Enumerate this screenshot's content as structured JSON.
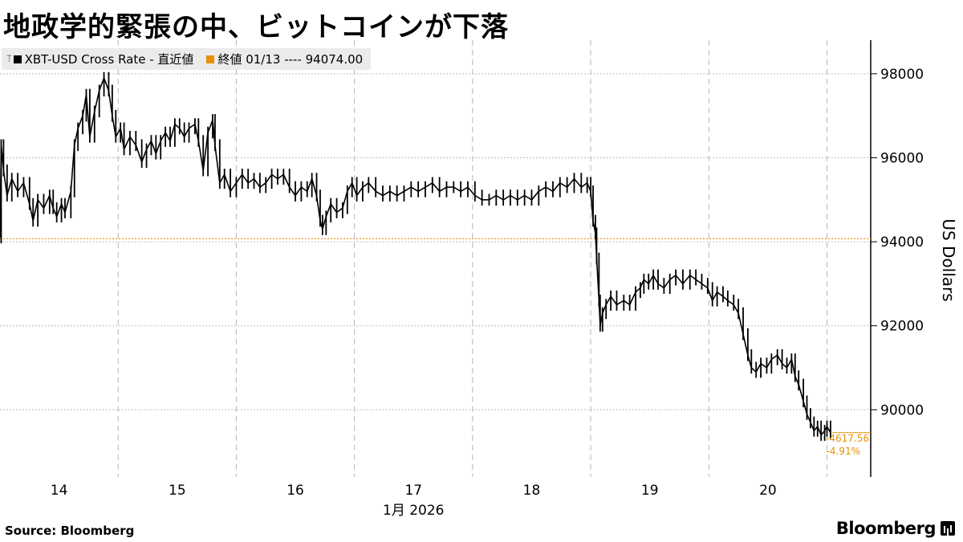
{
  "title": "地政学的緊張の中、ビットコインが下落",
  "legend": {
    "series_label": "XBT-USD Cross Rate - 直近値",
    "series_color": "#000000",
    "ref_label": "終値 01/13 ---- 94074.00",
    "ref_color": "#e69000"
  },
  "footer": {
    "source": "Source:  Bloomberg",
    "brand": "Bloomberg"
  },
  "chart_data": {
    "type": "line",
    "title": "地政学的緊張の中、ビットコインが下落",
    "ylabel": "US Dollars",
    "xlabel": "1月 2026",
    "x_tick_labels": [
      "14",
      "15",
      "16",
      "17",
      "18",
      "19",
      "20"
    ],
    "y_ticks": [
      90000,
      92000,
      94000,
      96000,
      98000
    ],
    "ylim": [
      88400,
      98800
    ],
    "xlim": [
      13.5,
      20.87
    ],
    "grid": true,
    "y_axis_position": "right",
    "reference_line": {
      "label": "終値 01/13",
      "value": 94074.0,
      "color": "#e69000"
    },
    "annotations": {
      "change": "-4617.56",
      "change_pct": "-4.91%"
    },
    "series": [
      {
        "name": "XBT-USD Cross Rate",
        "color": "#000000",
        "points": [
          [
            13.5,
            94100
          ],
          [
            13.51,
            96300
          ],
          [
            13.53,
            95700
          ],
          [
            13.56,
            95100
          ],
          [
            13.6,
            95500
          ],
          [
            13.65,
            95200
          ],
          [
            13.7,
            95400
          ],
          [
            13.75,
            94900
          ],
          [
            13.78,
            94500
          ],
          [
            13.82,
            95000
          ],
          [
            13.87,
            94800
          ],
          [
            13.92,
            95100
          ],
          [
            13.95,
            94800
          ],
          [
            13.98,
            94600
          ],
          [
            14.02,
            94900
          ],
          [
            14.05,
            94700
          ],
          [
            14.1,
            95200
          ],
          [
            14.13,
            96300
          ],
          [
            14.16,
            96700
          ],
          [
            14.2,
            97000
          ],
          [
            14.23,
            97500
          ],
          [
            14.26,
            96500
          ],
          [
            14.3,
            97100
          ],
          [
            14.34,
            97600
          ],
          [
            14.38,
            97900
          ],
          [
            14.42,
            97600
          ],
          [
            14.45,
            97000
          ],
          [
            14.48,
            96500
          ],
          [
            14.52,
            96700
          ],
          [
            14.55,
            96200
          ],
          [
            14.6,
            96500
          ],
          [
            14.65,
            96300
          ],
          [
            14.7,
            95900
          ],
          [
            14.74,
            96200
          ],
          [
            14.78,
            96400
          ],
          [
            14.82,
            96100
          ],
          [
            14.86,
            96400
          ],
          [
            14.9,
            96600
          ],
          [
            14.94,
            96400
          ],
          [
            14.98,
            96800
          ],
          [
            15.02,
            96700
          ],
          [
            15.06,
            96500
          ],
          [
            15.1,
            96700
          ],
          [
            15.15,
            96800
          ],
          [
            15.18,
            96400
          ],
          [
            15.22,
            95700
          ],
          [
            15.26,
            96600
          ],
          [
            15.3,
            96900
          ],
          [
            15.32,
            96300
          ],
          [
            15.36,
            95400
          ],
          [
            15.4,
            95600
          ],
          [
            15.45,
            95200
          ],
          [
            15.5,
            95400
          ],
          [
            15.55,
            95600
          ],
          [
            15.6,
            95400
          ],
          [
            15.65,
            95500
          ],
          [
            15.7,
            95300
          ],
          [
            15.75,
            95400
          ],
          [
            15.8,
            95600
          ],
          [
            15.85,
            95500
          ],
          [
            15.9,
            95600
          ],
          [
            15.95,
            95300
          ],
          [
            16.0,
            95100
          ],
          [
            16.05,
            95300
          ],
          [
            16.1,
            95200
          ],
          [
            16.14,
            95500
          ],
          [
            16.18,
            95100
          ],
          [
            16.21,
            94500
          ],
          [
            16.23,
            94300
          ],
          [
            16.26,
            94600
          ],
          [
            16.3,
            94900
          ],
          [
            16.35,
            94700
          ],
          [
            16.4,
            94800
          ],
          [
            16.44,
            95200
          ],
          [
            16.48,
            95400
          ],
          [
            16.52,
            95100
          ],
          [
            16.57,
            95300
          ],
          [
            16.62,
            95400
          ],
          [
            16.68,
            95200
          ],
          [
            16.74,
            95100
          ],
          [
            16.8,
            95200
          ],
          [
            16.86,
            95100
          ],
          [
            16.92,
            95200
          ],
          [
            16.98,
            95300
          ],
          [
            17.04,
            95200
          ],
          [
            17.1,
            95300
          ],
          [
            17.16,
            95400
          ],
          [
            17.22,
            95200
          ],
          [
            17.28,
            95300
          ],
          [
            17.34,
            95300
          ],
          [
            17.4,
            95200
          ],
          [
            17.46,
            95300
          ],
          [
            17.52,
            95100
          ],
          [
            17.58,
            95000
          ],
          [
            17.64,
            95000
          ],
          [
            17.7,
            95100
          ],
          [
            17.76,
            95000
          ],
          [
            17.82,
            95100
          ],
          [
            17.88,
            95000
          ],
          [
            17.94,
            95100
          ],
          [
            18.0,
            95000
          ],
          [
            18.06,
            95200
          ],
          [
            18.12,
            95300
          ],
          [
            18.18,
            95200
          ],
          [
            18.24,
            95400
          ],
          [
            18.3,
            95300
          ],
          [
            18.36,
            95500
          ],
          [
            18.42,
            95300
          ],
          [
            18.47,
            95400
          ],
          [
            18.5,
            95200
          ],
          [
            18.52,
            94500
          ],
          [
            18.54,
            94200
          ],
          [
            18.55,
            93600
          ],
          [
            18.57,
            92600
          ],
          [
            18.58,
            92000
          ],
          [
            18.6,
            92300
          ],
          [
            18.63,
            92500
          ],
          [
            18.67,
            92700
          ],
          [
            18.72,
            92500
          ],
          [
            18.78,
            92600
          ],
          [
            18.83,
            92500
          ],
          [
            18.88,
            92800
          ],
          [
            18.92,
            92900
          ],
          [
            18.95,
            93100
          ],
          [
            18.99,
            93000
          ],
          [
            19.03,
            93200
          ],
          [
            19.07,
            93000
          ],
          [
            19.12,
            92900
          ],
          [
            19.17,
            93100
          ],
          [
            19.22,
            93200
          ],
          [
            19.28,
            93000
          ],
          [
            19.34,
            93200
          ],
          [
            19.39,
            93100
          ],
          [
            19.44,
            93000
          ],
          [
            19.49,
            92900
          ],
          [
            19.53,
            92600
          ],
          [
            19.57,
            92800
          ],
          [
            19.62,
            92700
          ],
          [
            19.66,
            92600
          ],
          [
            19.71,
            92500
          ],
          [
            19.75,
            92300
          ],
          [
            19.79,
            91800
          ],
          [
            19.83,
            91300
          ],
          [
            19.86,
            91000
          ],
          [
            19.9,
            90900
          ],
          [
            19.94,
            91100
          ],
          [
            19.99,
            91000
          ],
          [
            20.03,
            91200
          ],
          [
            20.08,
            91300
          ],
          [
            20.12,
            91100
          ],
          [
            20.16,
            91000
          ],
          [
            20.2,
            91200
          ],
          [
            20.23,
            90800
          ],
          [
            20.26,
            90600
          ],
          [
            20.3,
            90200
          ],
          [
            20.33,
            89900
          ],
          [
            20.36,
            89700
          ],
          [
            20.39,
            89500
          ],
          [
            20.42,
            89600
          ],
          [
            20.45,
            89400
          ],
          [
            20.48,
            89500
          ],
          [
            20.5,
            89600
          ],
          [
            20.53,
            89456
          ]
        ]
      }
    ]
  }
}
